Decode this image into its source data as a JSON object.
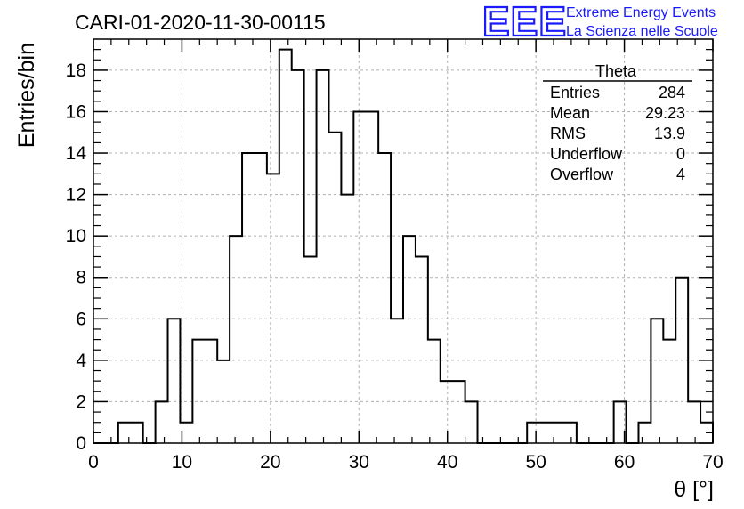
{
  "title": "CARI-01-2020-11-30-00115",
  "logo": {
    "mark": "EEE",
    "line1": "Extreme Energy Events",
    "line2": "La Scienza nelle Scuole",
    "color": "#1a1aff"
  },
  "stats": {
    "name": "Theta",
    "rows": [
      {
        "label": "Entries",
        "value": "284"
      },
      {
        "label": "Mean",
        "value": "29.23"
      },
      {
        "label": "RMS",
        "value": "13.9"
      },
      {
        "label": "Underflow",
        "value": "0"
      },
      {
        "label": "Overflow",
        "value": "4"
      }
    ]
  },
  "chart_data": {
    "type": "histogram",
    "xlabel": "θ [°]",
    "ylabel": "Entries/bin",
    "xlim": [
      0,
      70
    ],
    "ylim": [
      0,
      19.5
    ],
    "x_ticks": [
      0,
      10,
      20,
      30,
      40,
      50,
      60,
      70
    ],
    "y_ticks": [
      0,
      2,
      4,
      6,
      8,
      10,
      12,
      14,
      16,
      18
    ],
    "bin_width": 1.4,
    "bin_edges_start": 0,
    "values": [
      0,
      0,
      1,
      1,
      0,
      2,
      6,
      1,
      5,
      5,
      4,
      10,
      14,
      14,
      13,
      19,
      18,
      9,
      18,
      15,
      12,
      16,
      16,
      14,
      6,
      10,
      9,
      5,
      3,
      3,
      2,
      0,
      0,
      0,
      0,
      1,
      1,
      1,
      1,
      0,
      0,
      0,
      2,
      0,
      1,
      6,
      5,
      8,
      2,
      1
    ],
    "grid": true,
    "line_color": "#000000"
  }
}
